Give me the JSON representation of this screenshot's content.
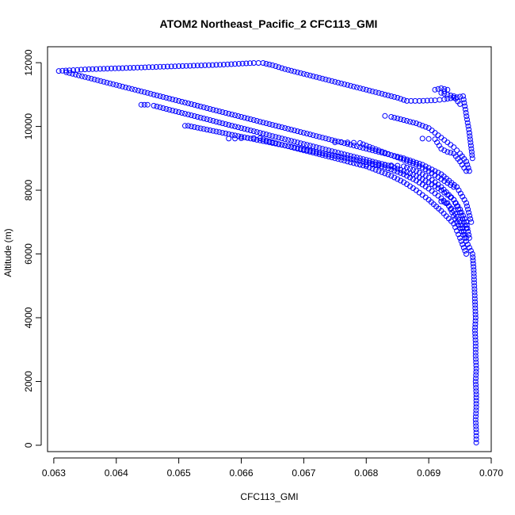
{
  "chart_data": {
    "type": "scatter",
    "title": "ATOM2 Northeast_Pacific_2 CFC113_GMI",
    "xlabel": "CFC113_GMI",
    "ylabel": "Altitude (m)",
    "xlim": [
      0.0629,
      0.07
    ],
    "ylim": [
      -200,
      12500
    ],
    "xticks": [
      0.063,
      0.064,
      0.065,
      0.066,
      0.067,
      0.068,
      0.069,
      0.07
    ],
    "xtick_labels": [
      "0.063",
      "0.064",
      "0.065",
      "0.066",
      "0.067",
      "0.068",
      "0.069",
      "0.070"
    ],
    "yticks": [
      0,
      2000,
      4000,
      6000,
      8000,
      10000,
      12000
    ],
    "ytick_labels": [
      "0",
      "2000",
      "4000",
      "6000",
      "8000",
      "10000",
      "12000"
    ],
    "marker": "open-circle",
    "color": "#0000ff",
    "grid": false,
    "legend": "none",
    "series": [
      {
        "x": [
          0.06308,
          0.06325,
          0.0635,
          0.0638,
          0.0641,
          0.0644,
          0.0647,
          0.065,
          0.0653,
          0.0656,
          0.0659,
          0.0662,
          0.06635,
          0.0665,
          0.0667,
          0.067,
          0.0673,
          0.0676,
          0.0679,
          0.0682,
          0.0685,
          0.06865,
          0.06885,
          0.0691,
          0.06925,
          0.0694,
          0.06955,
          0.06965,
          0.0697
        ],
        "y": [
          11740,
          11760,
          11790,
          11810,
          11830,
          11850,
          11870,
          11890,
          11910,
          11930,
          11960,
          11990,
          11990,
          11920,
          11800,
          11650,
          11500,
          11350,
          11200,
          11050,
          10900,
          10800,
          10800,
          10820,
          10850,
          10900,
          10950,
          9800,
          9000
        ]
      },
      {
        "x": [
          0.0632,
          0.0635,
          0.0638,
          0.0641,
          0.0644,
          0.0647,
          0.065,
          0.0653,
          0.0656,
          0.0659,
          0.0662,
          0.0665,
          0.0668,
          0.0671,
          0.0674,
          0.0677,
          0.068,
          0.0683,
          0.0686,
          0.0689,
          0.0692,
          0.06945,
          0.0696,
          0.06968
        ],
        "y": [
          11700,
          11550,
          11400,
          11250,
          11100,
          10950,
          10800,
          10650,
          10500,
          10350,
          10200,
          10050,
          9900,
          9750,
          9600,
          9450,
          9300,
          9150,
          9000,
          8800,
          8500,
          8100,
          7600,
          7000
        ]
      },
      {
        "x": [
          0.0644,
          0.06445,
          0.0645,
          0.0646,
          0.0648,
          0.065,
          0.0652,
          0.0654,
          0.0656,
          0.0658,
          0.066,
          0.0662,
          0.0664,
          0.0666,
          0.0668,
          0.067,
          0.0672,
          0.0674,
          0.0676,
          0.0678,
          0.068,
          0.0682,
          0.0684,
          0.0686,
          0.0688,
          0.069,
          0.0692,
          0.0694,
          0.0695,
          0.0696,
          0.06965
        ],
        "y": [
          10680,
          10680,
          10680,
          10650,
          10550,
          10450,
          10350,
          10250,
          10150,
          10050,
          9950,
          9850,
          9750,
          9650,
          9550,
          9450,
          9350,
          9250,
          9150,
          9050,
          8950,
          8850,
          8750,
          8600,
          8450,
          8250,
          8000,
          7700,
          7400,
          7000,
          6500
        ]
      },
      {
        "x": [
          0.0651,
          0.06515,
          0.0652,
          0.0654,
          0.0656,
          0.0658,
          0.066,
          0.0662,
          0.0664,
          0.0666,
          0.0668,
          0.067,
          0.0672,
          0.0674,
          0.0676,
          0.0678,
          0.068,
          0.0682,
          0.0684,
          0.0686,
          0.0688,
          0.069,
          0.0692,
          0.0694,
          0.0695,
          0.0696
        ],
        "y": [
          10020,
          10020,
          10000,
          9920,
          9840,
          9760,
          9680,
          9600,
          9520,
          9440,
          9360,
          9280,
          9200,
          9120,
          9040,
          8960,
          8880,
          8780,
          8650,
          8500,
          8300,
          8050,
          7750,
          7350,
          7000,
          6500
        ]
      },
      {
        "x": [
          0.0658,
          0.0659,
          0.066,
          0.0661,
          0.0662,
          0.0663,
          0.0664,
          0.0666,
          0.0668,
          0.067,
          0.0672,
          0.0674,
          0.0676,
          0.0678,
          0.068,
          0.0682,
          0.0684,
          0.0686,
          0.0688,
          0.069,
          0.0692,
          0.0694,
          0.0695,
          0.0696
        ],
        "y": [
          9620,
          9620,
          9630,
          9640,
          9640,
          9630,
          9560,
          9450,
          9350,
          9250,
          9150,
          9050,
          8950,
          8850,
          8750,
          8600,
          8450,
          8250,
          8000,
          7700,
          7350,
          6950,
          6500,
          6000
        ]
      },
      {
        "x": [
          0.0675,
          0.0676,
          0.0677,
          0.0678,
          0.0679,
          0.068,
          0.0682,
          0.0684,
          0.0686,
          0.0688,
          0.069,
          0.0692,
          0.0694
        ],
        "y": [
          9500,
          9510,
          9500,
          9490,
          9480,
          9400,
          9250,
          9100,
          8950,
          8800,
          8600,
          8350,
          8100
        ]
      },
      {
        "x": [
          0.0679,
          0.068,
          0.0681,
          0.0682,
          0.0683,
          0.0684,
          0.0685,
          0.0686,
          0.0688,
          0.069,
          0.0692,
          0.0694,
          0.0695,
          0.0696
        ],
        "y": [
          8800,
          8800,
          8800,
          8800,
          8790,
          8780,
          8770,
          8750,
          8600,
          8400,
          8100,
          7700,
          7300,
          6800
        ]
      },
      {
        "x": [
          0.0683,
          0.0684,
          0.0686,
          0.0688,
          0.069,
          0.0691,
          0.0692,
          0.0693,
          0.0694,
          0.0695,
          0.0696,
          0.06965
        ],
        "y": [
          10330,
          10300,
          10200,
          10100,
          9950,
          9800,
          9650,
          9500,
          9350,
          9150,
          8900,
          8600
        ]
      },
      {
        "x": [
          0.0689,
          0.069,
          0.0691,
          0.0692,
          0.0693,
          0.0694,
          0.0695,
          0.0696
        ],
        "y": [
          9620,
          9610,
          9600,
          9300,
          9200,
          9150,
          8900,
          8600
        ]
      },
      {
        "x": [
          0.0691,
          0.0692,
          0.0693,
          0.0692,
          0.0693,
          0.0694,
          0.0695
        ],
        "y": [
          11150,
          11200,
          11150,
          11050,
          11000,
          10950,
          10700
        ]
      },
      {
        "x": [
          0.0692,
          0.0693,
          0.0694,
          0.0695,
          0.0696,
          0.0697,
          0.06972,
          0.06973,
          0.06974,
          0.06975,
          0.06974,
          0.06975,
          0.06975,
          0.06976,
          0.06975,
          0.06976,
          0.06976,
          0.06975,
          0.06976,
          0.06976
        ],
        "y": [
          7650,
          7600,
          7200,
          6800,
          6400,
          6000,
          5500,
          5000,
          4500,
          4000,
          3600,
          3200,
          2800,
          2400,
          2000,
          1600,
          1200,
          800,
          400,
          80
        ]
      }
    ]
  }
}
